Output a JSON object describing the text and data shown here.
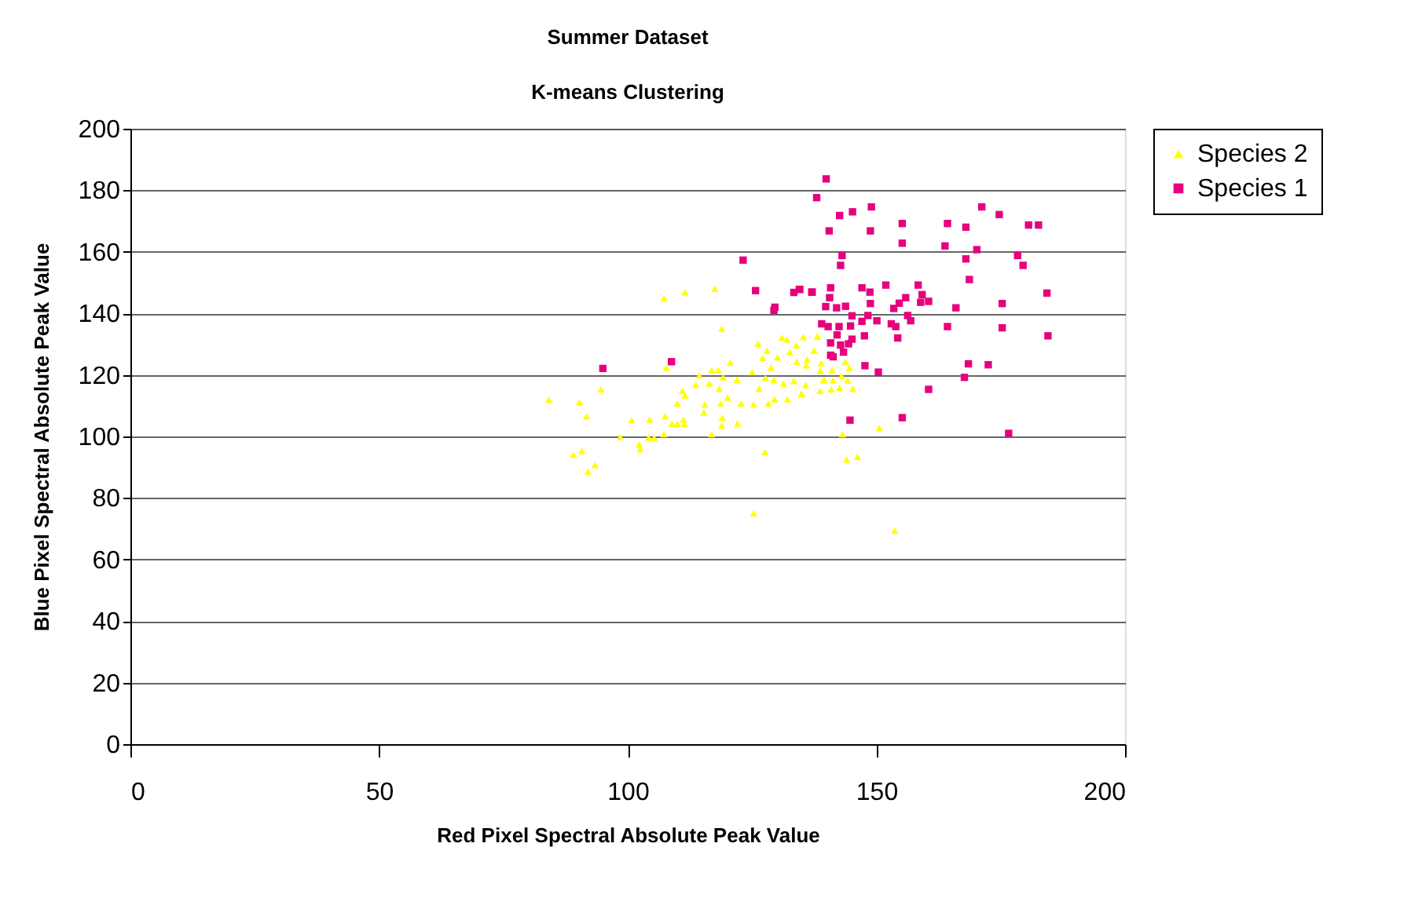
{
  "chart_data": {
    "type": "scatter",
    "title": "Summer Dataset",
    "subtitle": "K-means Clustering",
    "xlabel": "Red Pixel Spectral Absolute Peak Value",
    "ylabel": "Blue Pixel Spectral Absolute Peak Value",
    "xlim": [
      0,
      200
    ],
    "xticks": [
      0,
      50,
      100,
      150,
      200
    ],
    "ylim": [
      0,
      200
    ],
    "yticks": [
      0,
      20,
      40,
      60,
      80,
      100,
      120,
      140,
      160,
      180,
      200
    ],
    "grid": "y",
    "legend": "right",
    "series": [
      {
        "name": "Species 2",
        "color": "#ffff00",
        "marker": "triangle",
        "x": [
          84.1,
          90.3,
          91.7,
          89.1,
          90.8,
          92.0,
          93.4,
          94.6,
          98.5,
          100.8,
          102.3,
          102.5,
          104.4,
          104.2,
          105.3,
          107.3,
          107.5,
          108.9,
          110.0,
          111.4,
          111.2,
          110.0,
          111.0,
          111.5,
          107.3,
          111.5,
          117.5,
          118.9,
          107.8,
          113.7,
          115.3,
          115.5,
          116.9,
          118.9,
          119.0,
          122.1,
          120.1,
          122.8,
          125.3,
          127.6,
          125.3,
          114.4,
          116.9,
          118.2,
          120.6,
          119.2,
          122.0,
          116.4,
          118.4,
          118.7,
          125.0,
          126.2,
          127.1,
          128.0,
          128.8,
          130.1,
          131.0,
          132.0,
          132.6,
          133.9,
          135.3,
          134.0,
          135.9,
          126.4,
          128.3,
          129.5,
          131.3,
          132.1,
          133.4,
          134.9,
          135.8,
          137.4,
          138.1,
          138.7,
          138.7,
          139.3,
          127.7,
          129.4,
          138.2,
          137.5,
          136.1,
          138.9,
          143.8,
          144.6,
          141.1,
          143.0,
          139.5,
          141.3,
          144.2,
          140.9,
          142.6,
          145.2,
          135.0,
          143.2,
          150.6,
          144.0,
          146.2,
          153.7
        ],
        "values": [
          111.9,
          111.1,
          106.5,
          94.0,
          95.3,
          88.6,
          90.7,
          115.3,
          99.8,
          105.3,
          97.4,
          95.8,
          105.5,
          99.6,
          99.6,
          100.7,
          106.5,
          104.1,
          104.1,
          104.1,
          105.5,
          110.7,
          114.8,
          113.3,
          144.9,
          146.8,
          148.0,
          135.0,
          122.3,
          116.8,
          107.8,
          110.4,
          100.7,
          103.6,
          106.1,
          104.2,
          112.6,
          110.7,
          110.4,
          94.9,
          75.0,
          119.9,
          121.6,
          121.6,
          124.0,
          119.2,
          118.4,
          117.2,
          115.5,
          110.7,
          120.9,
          130.1,
          125.5,
          127.9,
          122.3,
          125.7,
          132.1,
          131.5,
          127.4,
          129.6,
          132.3,
          124.3,
          123.1,
          115.5,
          110.7,
          112.1,
          117.2,
          112.1,
          118.0,
          113.9,
          116.7,
          127.9,
          132.5,
          121.4,
          114.8,
          118.2,
          119.0,
          118.4,
          132.5,
          127.9,
          125.0,
          123.8,
          124.3,
          122.3,
          121.6,
          119.7,
          118.4,
          118.2,
          118.2,
          115.3,
          115.8,
          115.5,
          113.8,
          100.7,
          102.7,
          92.5,
          93.4,
          69.4
        ]
      },
      {
        "name": "Species 1",
        "color": "#e6007e",
        "marker": "square",
        "x": [
          139.9,
          138.0,
          123.2,
          125.7,
          133.4,
          134.6,
          137.0,
          129.6,
          129.4,
          139.8,
          139.0,
          108.8,
          95.0,
          149.0,
          145.2,
          142.6,
          140.5,
          148.8,
          155.2,
          155.2,
          164.3,
          168.0,
          171.2,
          174.7,
          180.6,
          182.6,
          163.8,
          170.2,
          143.1,
          142.8,
          168.0,
          178.4,
          179.5,
          168.7,
          184.3,
          175.3,
          184.5,
          134.5,
          137.1,
          140.8,
          140.6,
          142.0,
          143.8,
          147.1,
          148.7,
          148.8,
          151.9,
          153.5,
          154.6,
          155.9,
          158.4,
          159.2,
          158.9,
          160.5,
          166.0,
          140.3,
          142.5,
          144.8,
          145.1,
          147.1,
          148.3,
          150.1,
          153.0,
          153.9,
          156.3,
          156.9,
          164.3,
          175.3,
          142.1,
          147.6,
          154.3,
          140.8,
          142.8,
          144.4,
          145.1,
          140.8,
          141.3,
          143.4,
          147.7,
          150.4,
          160.5,
          167.7,
          168.5,
          172.5,
          144.7,
          155.2,
          176.6
        ],
        "values": [
          183.7,
          177.6,
          157.3,
          147.4,
          146.8,
          147.8,
          146.9,
          142.0,
          141.0,
          142.2,
          136.6,
          124.3,
          122.1,
          174.6,
          173.0,
          171.8,
          166.8,
          166.8,
          169.2,
          162.8,
          169.2,
          168.0,
          174.6,
          172.1,
          168.7,
          168.7,
          161.9,
          160.7,
          158.8,
          155.6,
          157.7,
          158.8,
          155.6,
          151.0,
          146.6,
          143.2,
          132.7,
          147.8,
          146.9,
          148.3,
          145.1,
          141.8,
          142.3,
          148.3,
          146.9,
          143.2,
          149.2,
          141.6,
          143.3,
          145.1,
          149.2,
          146.1,
          143.6,
          143.9,
          141.8,
          135.7,
          135.7,
          135.9,
          139.2,
          137.4,
          139.3,
          137.6,
          136.6,
          135.7,
          139.3,
          137.6,
          135.7,
          135.3,
          133.0,
          132.7,
          132.0,
          130.4,
          129.7,
          130.1,
          131.6,
          126.4,
          125.9,
          127.4,
          123.0,
          120.9,
          115.3,
          119.2,
          123.6,
          123.3,
          105.3,
          106.1,
          101.0
        ]
      }
    ]
  }
}
